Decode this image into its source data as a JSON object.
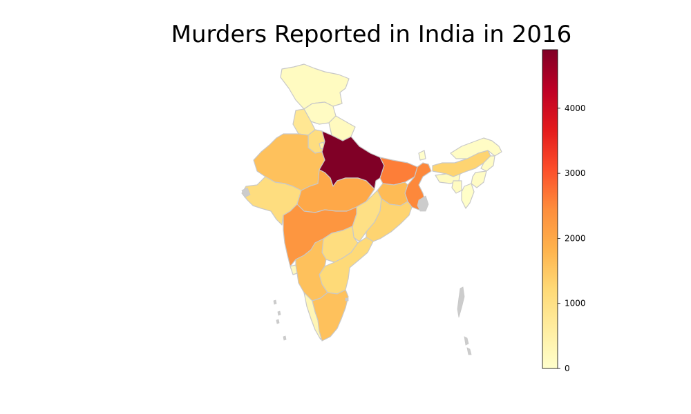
{
  "title": "Murders Reported in India in 2016",
  "colormap": "YlOrRd",
  "colorbar": {
    "min": 0,
    "max": 4900,
    "ticks": [
      {
        "value": 0,
        "label": "0"
      },
      {
        "value": 1000,
        "label": "1000"
      },
      {
        "value": 2000,
        "label": "2000"
      },
      {
        "value": 3000,
        "label": "3000"
      },
      {
        "value": 4000,
        "label": "4000"
      }
    ]
  },
  "colors": {
    "border": "#c8c8c8",
    "no_data": "#cccccc",
    "ramp": [
      "#ffffcc",
      "#ffeda0",
      "#fed976",
      "#feb24c",
      "#fd8d3c",
      "#fc4e2a",
      "#e31a1c",
      "#bd0026",
      "#800026"
    ]
  },
  "regions": [
    {
      "key": "jammu_kashmir",
      "value": 150
    },
    {
      "key": "himachal",
      "value": 120
    },
    {
      "key": "punjab",
      "value": 800
    },
    {
      "key": "uttarakhand",
      "value": 180
    },
    {
      "key": "haryana",
      "value": 1100
    },
    {
      "key": "rajasthan",
      "value": 1600
    },
    {
      "key": "gujarat",
      "value": 1100
    },
    {
      "key": "uttar_pradesh",
      "value": 4900
    },
    {
      "key": "madhya_pradesh",
      "value": 2000
    },
    {
      "key": "bihar",
      "value": 2600
    },
    {
      "key": "jharkhand",
      "value": 1700
    },
    {
      "key": "west_bengal",
      "value": 2500
    },
    {
      "key": "chhattisgarh",
      "value": 1000
    },
    {
      "key": "odisha",
      "value": 1300
    },
    {
      "key": "maharashtra",
      "value": 2300
    },
    {
      "key": "telangana",
      "value": 1100
    },
    {
      "key": "andhra_pradesh",
      "value": 1200
    },
    {
      "key": "karnataka",
      "value": 1600
    },
    {
      "key": "goa",
      "value": 200
    },
    {
      "key": "kerala",
      "value": 300
    },
    {
      "key": "tamil_nadu",
      "value": 1600
    },
    {
      "key": "assam",
      "value": 1300
    },
    {
      "key": "arunachal",
      "value": 100
    },
    {
      "key": "meghalaya",
      "value": 150
    },
    {
      "key": "nagaland",
      "value": 100
    },
    {
      "key": "manipur",
      "value": 100
    },
    {
      "key": "mizoram",
      "value": 50
    },
    {
      "key": "tripura",
      "value": 150
    },
    {
      "key": "sikkim",
      "value": 20
    },
    {
      "key": "delhi",
      "value": 500
    }
  ]
}
